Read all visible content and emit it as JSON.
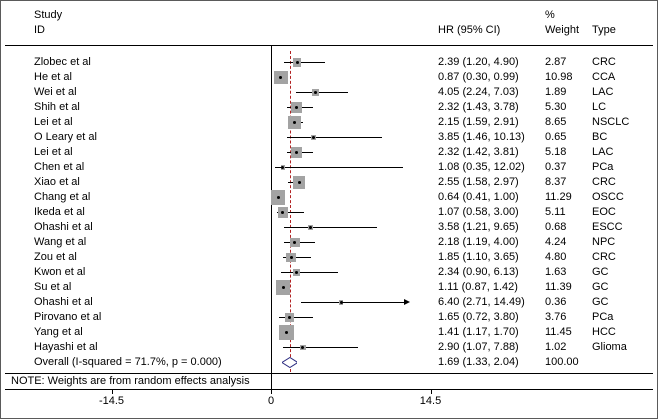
{
  "header": {
    "col_study_line1": "Study",
    "col_study_line2": "ID",
    "col_hr": "HR (95% CI)",
    "col_weight_line1": "%",
    "col_weight_line2": "Weight",
    "col_type": "Type"
  },
  "note": "NOTE: Weights are from random effects analysis",
  "chart_data": {
    "type": "forest",
    "axis": {
      "ticks": [
        "-14.5",
        "0",
        "14.5"
      ],
      "tick_values": [
        -14.5,
        0,
        14.5
      ],
      "zero_line_value": 0,
      "overall_line_value": 1.69,
      "ci_clip_value": 12.1
    },
    "colors": {
      "square": "#a3a3a3",
      "ci_line": "#000000",
      "marker_dot": "#000000",
      "overall_dashed": "#b22222",
      "diamond_outline": "#2b2b80",
      "diamond_fill": "#ffffff"
    },
    "studies": [
      {
        "id": "Zlobec et al",
        "hr": 2.39,
        "ci_low": 1.2,
        "ci_high": 4.9,
        "hr_label": "2.39 (1.20, 4.90)",
        "weight": 2.87,
        "weight_label": "2.87",
        "type": "CRC"
      },
      {
        "id": "He et al",
        "hr": 0.87,
        "ci_low": 0.3,
        "ci_high": 0.99,
        "hr_label": "0.87 (0.30, 0.99)",
        "weight": 10.98,
        "weight_label": "10.98",
        "type": "CCA"
      },
      {
        "id": "Wei et al",
        "hr": 4.05,
        "ci_low": 2.24,
        "ci_high": 7.03,
        "hr_label": "4.05 (2.24, 7.03)",
        "weight": 1.89,
        "weight_label": "1.89",
        "type": "LAC"
      },
      {
        "id": "Shih et al",
        "hr": 2.32,
        "ci_low": 1.43,
        "ci_high": 3.78,
        "hr_label": "2.32 (1.43, 3.78)",
        "weight": 5.3,
        "weight_label": "5.30",
        "type": "LC"
      },
      {
        "id": "Lei et al",
        "hr": 2.15,
        "ci_low": 1.59,
        "ci_high": 2.91,
        "hr_label": "2.15 (1.59, 2.91)",
        "weight": 8.65,
        "weight_label": "8.65",
        "type": "NSCLC"
      },
      {
        "id": "O Leary et al",
        "hr": 3.85,
        "ci_low": 1.46,
        "ci_high": 10.13,
        "hr_label": "3.85 (1.46, 10.13)",
        "weight": 0.65,
        "weight_label": "0.65",
        "type": "BC"
      },
      {
        "id": "Lei et al",
        "hr": 2.32,
        "ci_low": 1.42,
        "ci_high": 3.81,
        "hr_label": "2.32 (1.42, 3.81)",
        "weight": 5.18,
        "weight_label": "5.18",
        "type": "LAC"
      },
      {
        "id": "Chen et al",
        "hr": 1.08,
        "ci_low": 0.35,
        "ci_high": 12.02,
        "hr_label": "1.08 (0.35, 12.02)",
        "weight": 0.37,
        "weight_label": "0.37",
        "type": "PCa"
      },
      {
        "id": "Xiao et al",
        "hr": 2.55,
        "ci_low": 1.58,
        "ci_high": 2.97,
        "hr_label": "2.55 (1.58, 2.97)",
        "weight": 8.37,
        "weight_label": "8.37",
        "type": "CRC"
      },
      {
        "id": "Chang et al",
        "hr": 0.64,
        "ci_low": 0.41,
        "ci_high": 1.0,
        "hr_label": "0.64 (0.41, 1.00)",
        "weight": 11.29,
        "weight_label": "11.29",
        "type": "OSCC"
      },
      {
        "id": "Ikeda et al",
        "hr": 1.07,
        "ci_low": 0.58,
        "ci_high": 3.0,
        "hr_label": "1.07 (0.58, 3.00)",
        "weight": 5.11,
        "weight_label": "5.11",
        "type": "EOC"
      },
      {
        "id": "Ohashi et al",
        "hr": 3.58,
        "ci_low": 1.21,
        "ci_high": 9.65,
        "hr_label": "3.58 (1.21, 9.65)",
        "weight": 0.68,
        "weight_label": "0.68",
        "type": "ESCC"
      },
      {
        "id": "Wang et al",
        "hr": 2.18,
        "ci_low": 1.19,
        "ci_high": 4.0,
        "hr_label": "2.18 (1.19, 4.00)",
        "weight": 4.24,
        "weight_label": "4.24",
        "type": "NPC"
      },
      {
        "id": "Zou et al",
        "hr": 1.85,
        "ci_low": 1.1,
        "ci_high": 3.65,
        "hr_label": "1.85 (1.10, 3.65)",
        "weight": 4.8,
        "weight_label": "4.80",
        "type": "CRC"
      },
      {
        "id": "Kwon et al",
        "hr": 2.34,
        "ci_low": 0.9,
        "ci_high": 6.13,
        "hr_label": "2.34 (0.90, 6.13)",
        "weight": 1.63,
        "weight_label": "1.63",
        "type": "GC"
      },
      {
        "id": "Su et al",
        "hr": 1.11,
        "ci_low": 0.87,
        "ci_high": 1.42,
        "hr_label": "1.11 (0.87, 1.42)",
        "weight": 11.39,
        "weight_label": "11.39",
        "type": "GC"
      },
      {
        "id": "Ohashi et al",
        "hr": 6.4,
        "ci_low": 2.71,
        "ci_high": 14.49,
        "hr_label": "6.40 (2.71, 14.49)",
        "weight": 0.36,
        "weight_label": "0.36",
        "type": "GC"
      },
      {
        "id": "Pirovano et al",
        "hr": 1.65,
        "ci_low": 0.72,
        "ci_high": 3.8,
        "hr_label": "1.65 (0.72, 3.80)",
        "weight": 3.76,
        "weight_label": "3.76",
        "type": "PCa"
      },
      {
        "id": "Yang et al",
        "hr": 1.41,
        "ci_low": 1.17,
        "ci_high": 1.7,
        "hr_label": "1.41 (1.17, 1.70)",
        "weight": 11.45,
        "weight_label": "11.45",
        "type": "HCC"
      },
      {
        "id": "Hayashi et al",
        "hr": 2.9,
        "ci_low": 1.07,
        "ci_high": 7.88,
        "hr_label": "2.90 (1.07, 7.88)",
        "weight": 1.02,
        "weight_label": "1.02",
        "type": "Glioma"
      }
    ],
    "overall": {
      "id": "Overall (I-squared = 71.7%, p = 0.000)",
      "hr": 1.69,
      "ci_low": 1.33,
      "ci_high": 2.04,
      "hr_label": "1.69 (1.33, 2.04)",
      "weight_label": "100.00"
    }
  }
}
